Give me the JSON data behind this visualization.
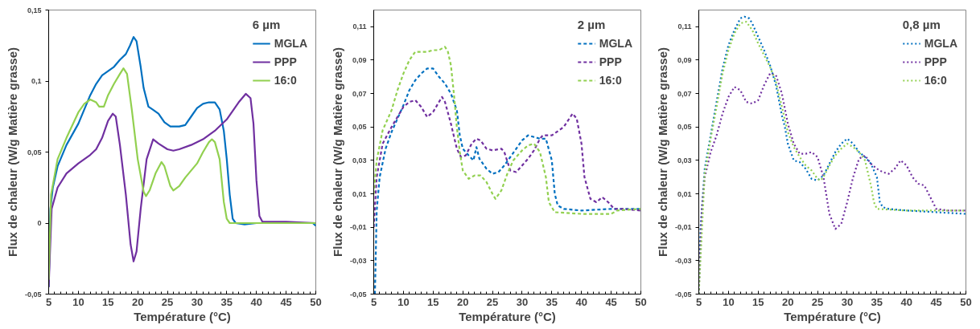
{
  "chart_data": [
    {
      "type": "line",
      "legend_title": "6 µm",
      "xlabel": "Température (°C)",
      "ylabel": "Flux de chaleur (W/g Matière grasse)",
      "xlim": [
        5,
        50
      ],
      "ylim": [
        -0.05,
        0.15
      ],
      "xticks": [
        5,
        10,
        15,
        20,
        25,
        30,
        35,
        40,
        45,
        50
      ],
      "yticks": [
        {
          "value": -0.05,
          "label": "-0,05"
        },
        0,
        {
          "value": 0.05,
          "label": "0,05"
        },
        {
          "value": 0.1,
          "label": "0,1"
        },
        {
          "value": 0.15,
          "label": "0,15"
        }
      ],
      "grid": false,
      "legend": "top right",
      "line_style": "solid",
      "series": [
        {
          "name": "MGLA",
          "color": "#0070c0",
          "x": [
            5,
            5.3,
            5.7,
            6.5,
            8,
            10,
            11,
            12,
            13,
            14,
            15,
            16,
            17,
            18,
            18.7,
            19.3,
            19.8,
            20.5,
            21,
            21.8,
            22.5,
            23.5,
            24.5,
            25.5,
            27,
            28,
            29,
            30,
            31,
            32,
            33,
            33.8,
            34.5,
            35,
            35.5,
            36,
            36.5,
            38,
            40,
            45,
            49.5,
            50
          ],
          "values": [
            -0.045,
            0.01,
            0.025,
            0.04,
            0.055,
            0.07,
            0.08,
            0.09,
            0.098,
            0.104,
            0.107,
            0.11,
            0.115,
            0.119,
            0.125,
            0.131,
            0.128,
            0.11,
            0.095,
            0.082,
            0.08,
            0.077,
            0.071,
            0.068,
            0.068,
            0.069,
            0.075,
            0.081,
            0.084,
            0.085,
            0.085,
            0.08,
            0.065,
            0.045,
            0.02,
            0.003,
            0,
            -0.001,
            0,
            0,
            0,
            -0.002
          ]
        },
        {
          "name": "PPP",
          "color": "#7030a0",
          "x": [
            5,
            5.5,
            6.5,
            8,
            10,
            12,
            13,
            14,
            15,
            15.8,
            16.3,
            17,
            18,
            18.8,
            19.3,
            19.8,
            20.5,
            21.5,
            22.6,
            23.5,
            25,
            26,
            27,
            29,
            31,
            33,
            35,
            37,
            38.2,
            39,
            39.5,
            40,
            40.5,
            41,
            45,
            50
          ],
          "values": [
            -0.045,
            0.01,
            0.025,
            0.035,
            0.042,
            0.048,
            0.052,
            0.06,
            0.072,
            0.077,
            0.075,
            0.055,
            0.02,
            -0.015,
            -0.027,
            -0.02,
            0.01,
            0.045,
            0.059,
            0.056,
            0.052,
            0.051,
            0.052,
            0.055,
            0.059,
            0.065,
            0.073,
            0.085,
            0.091,
            0.088,
            0.07,
            0.03,
            0.005,
            0.001,
            0.001,
            0
          ]
        },
        {
          "name": "16:0",
          "color": "#92d050",
          "x": [
            5,
            5.4,
            6.5,
            8,
            10,
            11,
            12,
            13,
            13.5,
            14.3,
            15,
            16,
            17,
            17.6,
            18.2,
            19,
            20,
            21,
            21.4,
            22,
            23,
            24,
            24.5,
            25.5,
            26,
            27,
            28,
            30,
            31,
            32,
            32.5,
            33,
            33.8,
            34.5,
            35,
            35.5,
            40,
            50
          ],
          "values": [
            -0.04,
            0.02,
            0.045,
            0.06,
            0.078,
            0.084,
            0.087,
            0.085,
            0.082,
            0.082,
            0.09,
            0.098,
            0.105,
            0.109,
            0.105,
            0.08,
            0.045,
            0.022,
            0.019,
            0.023,
            0.035,
            0.043,
            0.04,
            0.026,
            0.023,
            0.026,
            0.032,
            0.042,
            0.05,
            0.057,
            0.059,
            0.057,
            0.045,
            0.015,
            0.003,
            0,
            0,
            0
          ]
        }
      ]
    },
    {
      "type": "line",
      "legend_title": "2 µm",
      "xlabel": "Température (°C)",
      "ylabel": "Flux de chaleur (W/g Matière grasse)",
      "xlim": [
        5,
        50
      ],
      "ylim": [
        -0.05,
        0.12
      ],
      "xticks": [
        5,
        10,
        15,
        20,
        25,
        30,
        35,
        40,
        45,
        50
      ],
      "yticks": [
        {
          "value": -0.05,
          "label": "-0,05"
        },
        {
          "value": -0.03,
          "label": "-0,03"
        },
        {
          "value": -0.01,
          "label": "-0,01"
        },
        {
          "value": 0.01,
          "label": "0,01"
        },
        {
          "value": 0.03,
          "label": "0,03"
        },
        {
          "value": 0.05,
          "label": "0,05"
        },
        {
          "value": 0.07,
          "label": "0,07"
        },
        {
          "value": 0.09,
          "label": "0,09"
        },
        {
          "value": 0.11,
          "label": "0,11"
        }
      ],
      "grid": false,
      "legend": "top right",
      "line_style": "dashed",
      "series": [
        {
          "name": "MGLA",
          "color": "#0070c0",
          "x": [
            5.2,
            5.5,
            6,
            7,
            8,
            9,
            10,
            11,
            12,
            13,
            14,
            15,
            16,
            17,
            18,
            19,
            19.5,
            20,
            21,
            21.8,
            22.3,
            22.8,
            24,
            25,
            26,
            27,
            28,
            29,
            30,
            31,
            32,
            33,
            34,
            35,
            35.5,
            36,
            37,
            40,
            45,
            50
          ],
          "values": [
            -0.05,
            0,
            0.02,
            0.037,
            0.047,
            0.055,
            0.063,
            0.072,
            0.078,
            0.082,
            0.085,
            0.085,
            0.08,
            0.076,
            0.07,
            0.06,
            0.045,
            0.037,
            0.033,
            0.03,
            0.038,
            0.031,
            0.025,
            0.022,
            0.023,
            0.027,
            0.032,
            0.037,
            0.042,
            0.045,
            0.044,
            0.043,
            0.043,
            0.03,
            0.01,
            0.003,
            0.001,
            0,
            0.001,
            0.001
          ]
        },
        {
          "name": "PPP",
          "color": "#7030a0",
          "x": [
            5,
            5.5,
            6.5,
            8,
            9,
            10,
            11,
            12,
            13,
            14,
            15,
            16,
            16.5,
            17,
            18,
            19,
            19.7,
            20.5,
            21.5,
            22.3,
            23,
            24,
            25,
            26.5,
            27,
            28,
            29,
            30,
            31,
            32,
            33,
            33.5,
            35,
            37,
            38.5,
            39.2,
            40,
            40.5,
            41.5,
            42.5,
            43.5,
            44.5,
            45.5,
            47,
            50
          ],
          "values": [
            -0.01,
            0.02,
            0.04,
            0.05,
            0.056,
            0.062,
            0.065,
            0.066,
            0.062,
            0.056,
            0.059,
            0.065,
            0.068,
            0.065,
            0.052,
            0.037,
            0.032,
            0.033,
            0.04,
            0.043,
            0.042,
            0.037,
            0.036,
            0.037,
            0.035,
            0.024,
            0.023,
            0.027,
            0.031,
            0.036,
            0.043,
            0.045,
            0.045,
            0.05,
            0.058,
            0.055,
            0.04,
            0.02,
            0.007,
            0.005,
            0.008,
            0.005,
            0.001,
            0.001,
            0
          ]
        },
        {
          "name": "16:0",
          "color": "#92d050",
          "x": [
            5,
            5.5,
            6.5,
            8,
            9,
            10,
            11,
            12,
            13,
            14,
            15,
            16,
            17,
            17.5,
            18,
            18.5,
            19,
            19.5,
            20,
            21,
            22,
            23,
            24,
            25,
            25.5,
            26.5,
            27.5,
            28.5,
            30,
            31,
            32,
            33,
            34,
            34.5,
            35.5,
            40,
            45,
            46,
            50
          ],
          "values": [
            0.01,
            0.03,
            0.048,
            0.06,
            0.072,
            0.082,
            0.09,
            0.095,
            0.095,
            0.095,
            0.096,
            0.096,
            0.098,
            0.095,
            0.087,
            0.07,
            0.05,
            0.035,
            0.024,
            0.019,
            0.021,
            0.021,
            0.017,
            0.01,
            0.007,
            0.012,
            0.022,
            0.03,
            0.036,
            0.039,
            0.04,
            0.035,
            0.02,
            0.005,
            -0.001,
            -0.002,
            -0.002,
            0,
            0.001
          ]
        }
      ]
    },
    {
      "type": "line",
      "legend_title": "0,8 µm",
      "xlabel": "Température (°C)",
      "ylabel": "Flux de chaleur (W/g Matière grasse)",
      "xlim": [
        5,
        50
      ],
      "ylim": [
        -0.05,
        0.12
      ],
      "xticks": [
        5,
        10,
        15,
        20,
        25,
        30,
        35,
        40,
        45,
        50
      ],
      "yticks": [
        {
          "value": -0.05,
          "label": "-0,05"
        },
        {
          "value": -0.03,
          "label": "-0,03"
        },
        {
          "value": -0.01,
          "label": "-0,01"
        },
        {
          "value": 0.01,
          "label": "0,01"
        },
        {
          "value": 0.03,
          "label": "0,03"
        },
        {
          "value": 0.05,
          "label": "0,05"
        },
        {
          "value": 0.07,
          "label": "0,07"
        },
        {
          "value": 0.09,
          "label": "0,09"
        },
        {
          "value": 0.11,
          "label": "0,11"
        }
      ],
      "grid": false,
      "legend": "top right",
      "line_style": "dotted",
      "series": [
        {
          "name": "MGLA",
          "color": "#0070c0",
          "x": [
            5,
            5.3,
            5.7,
            6,
            7,
            8,
            9,
            10,
            11,
            12,
            12.7,
            13.5,
            14,
            15,
            16,
            17,
            18,
            19,
            19.5,
            20,
            21,
            22,
            23,
            24,
            25,
            26,
            27,
            28,
            29,
            30,
            31,
            32,
            33,
            34,
            35,
            35.5,
            36,
            37,
            40,
            45,
            50
          ],
          "values": [
            -0.05,
            -0.01,
            0.01,
            0.025,
            0.045,
            0.065,
            0.085,
            0.099,
            0.108,
            0.115,
            0.116,
            0.115,
            0.112,
            0.104,
            0.096,
            0.087,
            0.075,
            0.057,
            0.05,
            0.04,
            0.03,
            0.029,
            0.025,
            0.019,
            0.018,
            0.021,
            0.028,
            0.035,
            0.04,
            0.043,
            0.04,
            0.035,
            0.032,
            0.028,
            0.02,
            0.005,
            0.002,
            0.001,
            0,
            -0.001,
            -0.002
          ]
        },
        {
          "name": "PPP",
          "color": "#7030a0",
          "x": [
            5,
            5.5,
            6,
            7,
            8,
            9,
            10,
            11,
            12,
            13,
            14,
            15,
            16,
            17,
            18,
            19,
            20,
            21,
            22,
            23,
            24,
            25,
            26,
            27,
            28,
            29,
            30,
            31,
            32,
            33,
            34,
            35,
            36,
            37,
            38,
            39,
            40,
            41,
            42,
            43,
            44,
            45,
            47,
            50
          ],
          "values": [
            -0.05,
            0,
            0.02,
            0.035,
            0.045,
            0.058,
            0.068,
            0.074,
            0.072,
            0.065,
            0.064,
            0.066,
            0.075,
            0.082,
            0.081,
            0.07,
            0.052,
            0.04,
            0.034,
            0.034,
            0.035,
            0.032,
            0.02,
            -0.002,
            -0.011,
            -0.008,
            0.005,
            0.02,
            0.031,
            0.033,
            0.028,
            0.025,
            0.023,
            0.022,
            0.025,
            0.03,
            0.027,
            0.02,
            0.016,
            0.015,
            0.008,
            0.001,
            0,
            0
          ]
        },
        {
          "name": "16:0",
          "color": "#92d050",
          "x": [
            5,
            6,
            7,
            8,
            9,
            10,
            11,
            12,
            13,
            14,
            15,
            16,
            17,
            18,
            19,
            20,
            21,
            22,
            23,
            24,
            25,
            25.5,
            26,
            27,
            28,
            29,
            30,
            31,
            32,
            33,
            34,
            34.5,
            35,
            40,
            50
          ],
          "values": [
            -0.05,
            0.022,
            0.043,
            0.062,
            0.082,
            0.096,
            0.106,
            0.112,
            0.113,
            0.108,
            0.1,
            0.093,
            0.086,
            0.077,
            0.062,
            0.047,
            0.038,
            0.032,
            0.027,
            0.024,
            0.019,
            0.018,
            0.02,
            0.027,
            0.033,
            0.037,
            0.04,
            0.038,
            0.035,
            0.03,
            0.015,
            0.005,
            0.001,
            0,
            0
          ]
        }
      ]
    }
  ]
}
